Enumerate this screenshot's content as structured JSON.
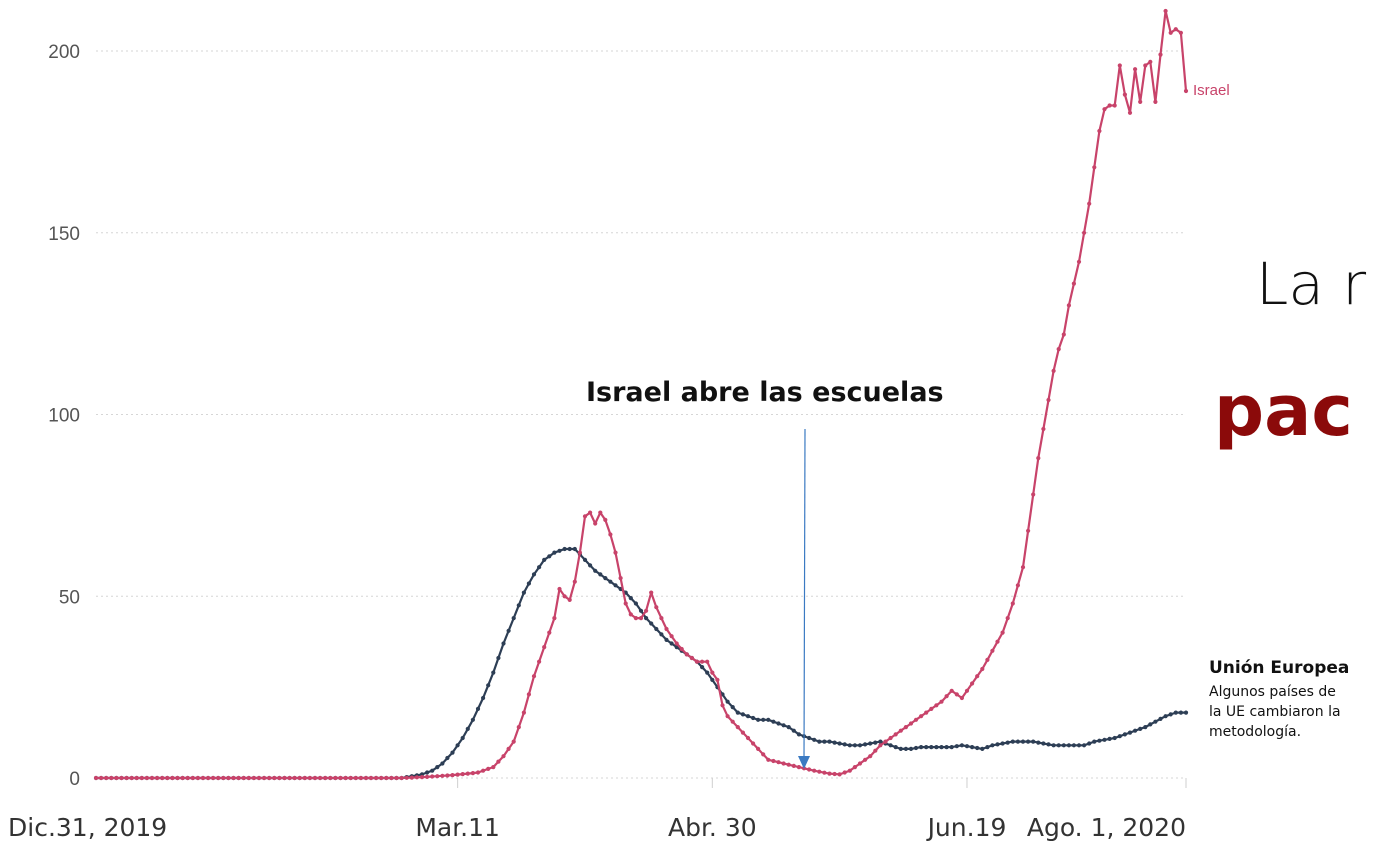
{
  "colors": {
    "israel": "#c8436a",
    "eu": "#2d3e55",
    "annotation_arrow": "#3b7ac2",
    "overlay_bold": "#8b0a0a",
    "grid": "#d6d6d6"
  },
  "overlay": {
    "line1": "La r",
    "line2": "pac"
  },
  "annotation": {
    "text": "Israel abre las escuelas",
    "x": 139
  },
  "eu_label": {
    "title": "Unión Europea",
    "note": [
      "Algunos  países de",
      "la UE cambiaron la",
      "metodología."
    ]
  },
  "chart_data": {
    "type": "line",
    "title": "",
    "xlabel": "",
    "ylabel": "",
    "x_range": [
      0,
      214
    ],
    "ylim": [
      0,
      210
    ],
    "grid": "horizontal dotted",
    "yticks": [
      {
        "value": 0,
        "label": "0"
      },
      {
        "value": 50,
        "label": "50"
      },
      {
        "value": 100,
        "label": "100"
      },
      {
        "value": 150,
        "label": "150"
      },
      {
        "value": 200,
        "label": "200"
      }
    ],
    "xticks": [
      {
        "x": 0,
        "label": "Dic.31, 2019"
      },
      {
        "x": 71,
        "label": "Mar.11"
      },
      {
        "x": 121,
        "label": "Abr. 30"
      },
      {
        "x": 171,
        "label": "Jun.19"
      },
      {
        "x": 214,
        "label": "Ago. 1, 2020"
      }
    ],
    "series": [
      {
        "name": "Israel",
        "points": [
          [
            0,
            0
          ],
          [
            60,
            0
          ],
          [
            65,
            0.3
          ],
          [
            70,
            0.8
          ],
          [
            75,
            1.5
          ],
          [
            78,
            3
          ],
          [
            80,
            6
          ],
          [
            82,
            10
          ],
          [
            84,
            18
          ],
          [
            86,
            28
          ],
          [
            88,
            36
          ],
          [
            90,
            44
          ],
          [
            91,
            52
          ],
          [
            92,
            50
          ],
          [
            93,
            49
          ],
          [
            94,
            54
          ],
          [
            95,
            62
          ],
          [
            96,
            72
          ],
          [
            97,
            73
          ],
          [
            98,
            70
          ],
          [
            99,
            73
          ],
          [
            100,
            71
          ],
          [
            101,
            67
          ],
          [
            102,
            62
          ],
          [
            103,
            55
          ],
          [
            104,
            48
          ],
          [
            105,
            45
          ],
          [
            106,
            44
          ],
          [
            107,
            44
          ],
          [
            108,
            46
          ],
          [
            109,
            51
          ],
          [
            110,
            47
          ],
          [
            111,
            44
          ],
          [
            112,
            41
          ],
          [
            114,
            37
          ],
          [
            116,
            34
          ],
          [
            118,
            32
          ],
          [
            120,
            32
          ],
          [
            121,
            29
          ],
          [
            122,
            27
          ],
          [
            123,
            20
          ],
          [
            124,
            17
          ],
          [
            126,
            14
          ],
          [
            128,
            11
          ],
          [
            130,
            8
          ],
          [
            132,
            5
          ],
          [
            135,
            4
          ],
          [
            138,
            3
          ],
          [
            141,
            2
          ],
          [
            144,
            1.2
          ],
          [
            146,
            1
          ],
          [
            148,
            2
          ],
          [
            150,
            4
          ],
          [
            152,
            6
          ],
          [
            154,
            9
          ],
          [
            156,
            11
          ],
          [
            158,
            13
          ],
          [
            160,
            15
          ],
          [
            162,
            17
          ],
          [
            164,
            19
          ],
          [
            166,
            21
          ],
          [
            168,
            24
          ],
          [
            170,
            22
          ],
          [
            172,
            26
          ],
          [
            174,
            30
          ],
          [
            176,
            35
          ],
          [
            178,
            40
          ],
          [
            180,
            48
          ],
          [
            182,
            58
          ],
          [
            183,
            68
          ],
          [
            184,
            78
          ],
          [
            185,
            88
          ],
          [
            186,
            96
          ],
          [
            187,
            104
          ],
          [
            188,
            112
          ],
          [
            189,
            118
          ],
          [
            190,
            122
          ],
          [
            191,
            130
          ],
          [
            192,
            136
          ],
          [
            193,
            142
          ],
          [
            194,
            150
          ],
          [
            195,
            158
          ],
          [
            196,
            168
          ],
          [
            197,
            178
          ],
          [
            198,
            184
          ],
          [
            199,
            185
          ],
          [
            200,
            185
          ],
          [
            201,
            196
          ],
          [
            202,
            188
          ],
          [
            203,
            183
          ],
          [
            204,
            195
          ],
          [
            205,
            186
          ],
          [
            206,
            196
          ],
          [
            207,
            197
          ],
          [
            208,
            186
          ],
          [
            209,
            199
          ],
          [
            210,
            211
          ],
          [
            211,
            205
          ],
          [
            212,
            206
          ],
          [
            213,
            205
          ],
          [
            214,
            189
          ]
        ]
      },
      {
        "name": "",
        "points": [
          [
            0,
            0
          ],
          [
            60,
            0
          ],
          [
            62,
            0.5
          ],
          [
            64,
            1
          ],
          [
            66,
            2
          ],
          [
            68,
            4
          ],
          [
            70,
            7
          ],
          [
            72,
            11
          ],
          [
            74,
            16
          ],
          [
            76,
            22
          ],
          [
            78,
            29
          ],
          [
            80,
            37
          ],
          [
            82,
            44
          ],
          [
            84,
            51
          ],
          [
            86,
            56
          ],
          [
            88,
            60
          ],
          [
            90,
            62
          ],
          [
            92,
            63
          ],
          [
            94,
            63
          ],
          [
            96,
            60
          ],
          [
            98,
            57
          ],
          [
            100,
            55
          ],
          [
            102,
            53
          ],
          [
            104,
            51
          ],
          [
            106,
            48
          ],
          [
            108,
            44
          ],
          [
            110,
            41
          ],
          [
            112,
            38
          ],
          [
            114,
            36
          ],
          [
            116,
            34
          ],
          [
            118,
            32
          ],
          [
            120,
            29
          ],
          [
            122,
            25
          ],
          [
            124,
            21
          ],
          [
            126,
            18
          ],
          [
            128,
            17
          ],
          [
            130,
            16
          ],
          [
            132,
            16
          ],
          [
            134,
            15
          ],
          [
            136,
            14
          ],
          [
            138,
            12
          ],
          [
            140,
            11
          ],
          [
            142,
            10
          ],
          [
            144,
            10
          ],
          [
            146,
            9.5
          ],
          [
            148,
            9
          ],
          [
            150,
            9
          ],
          [
            152,
            9.5
          ],
          [
            154,
            10
          ],
          [
            156,
            9
          ],
          [
            158,
            8
          ],
          [
            160,
            8
          ],
          [
            162,
            8.5
          ],
          [
            164,
            8.5
          ],
          [
            166,
            8.5
          ],
          [
            168,
            8.5
          ],
          [
            170,
            9
          ],
          [
            172,
            8.5
          ],
          [
            174,
            8
          ],
          [
            176,
            9
          ],
          [
            178,
            9.5
          ],
          [
            180,
            10
          ],
          [
            182,
            10
          ],
          [
            184,
            10
          ],
          [
            186,
            9.5
          ],
          [
            188,
            9
          ],
          [
            190,
            9
          ],
          [
            192,
            9
          ],
          [
            194,
            9
          ],
          [
            196,
            10
          ],
          [
            198,
            10.5
          ],
          [
            200,
            11
          ],
          [
            202,
            12
          ],
          [
            204,
            13
          ],
          [
            206,
            14
          ],
          [
            208,
            15.5
          ],
          [
            210,
            17
          ],
          [
            212,
            18
          ],
          [
            214,
            18
          ]
        ]
      }
    ]
  }
}
